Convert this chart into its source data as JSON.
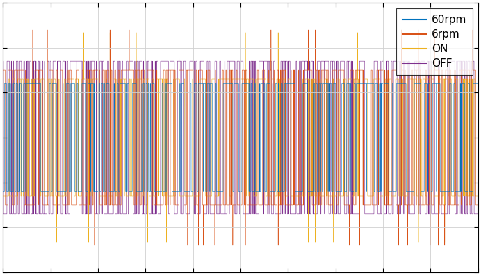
{
  "colors": {
    "60rpm": "#0072BD",
    "6rpm": "#D95319",
    "ON": "#EDB120",
    "OFF": "#7E2F8E"
  },
  "legend_labels": [
    "60rpm",
    "6rpm",
    "ON",
    "OFF"
  ],
  "n_points": 10000,
  "ylim": [
    -1.5,
    1.5
  ],
  "xlim": [
    0,
    1
  ],
  "seed": 42,
  "background": "#ffffff",
  "linewidth": 0.4,
  "amplitude_off": 0.85,
  "amplitude_on": 0.65,
  "amplitude_6rpm": 0.75,
  "amplitude_60rpm": 0.6
}
